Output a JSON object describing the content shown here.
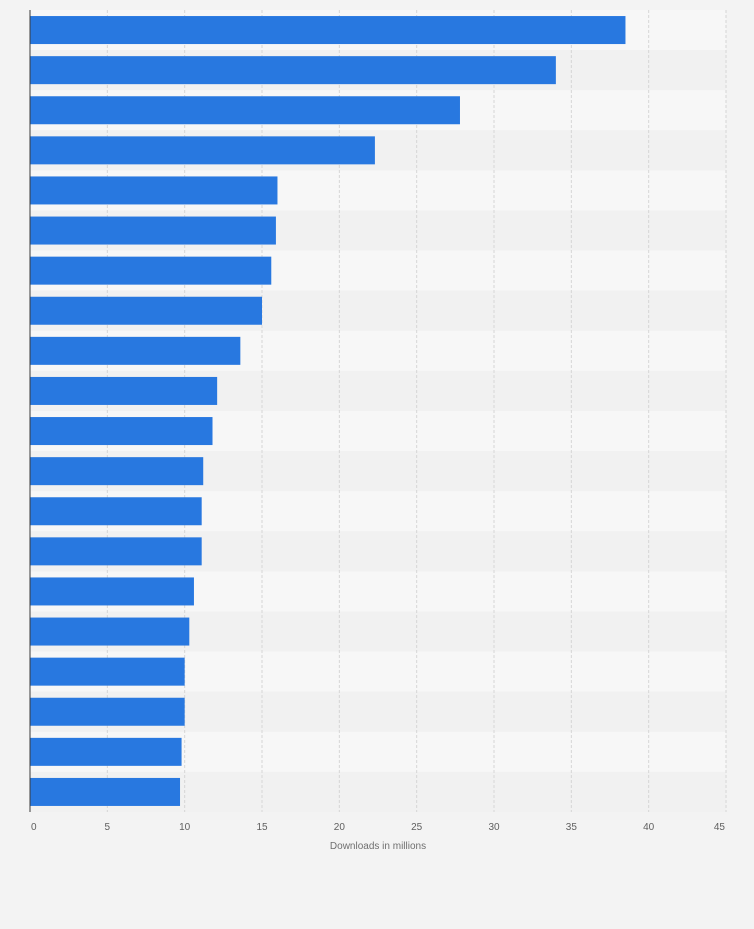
{
  "chart_data": {
    "type": "bar",
    "orientation": "horizontal",
    "title": "",
    "xlabel": "Downloads in millions",
    "ylabel": "",
    "xlim": [
      0,
      45
    ],
    "x_ticks": [
      0,
      5,
      10,
      15,
      20,
      25,
      30,
      35,
      40,
      45
    ],
    "grid": true,
    "categories": [
      "",
      "",
      "",
      "",
      "",
      "",
      "",
      "",
      "",
      "",
      "",
      "",
      "",
      "",
      "",
      "",
      "",
      "",
      "",
      ""
    ],
    "values": [
      38.5,
      34.0,
      27.8,
      22.3,
      16.0,
      15.9,
      15.6,
      15.0,
      13.6,
      12.1,
      11.8,
      11.2,
      11.1,
      11.1,
      10.6,
      10.3,
      10.0,
      10.0,
      9.8,
      9.7
    ],
    "colors": {
      "bar": "#2878e0",
      "band_light": "#f7f7f7",
      "band_dark": "#f1f1f1",
      "background": "#f3f3f3"
    }
  }
}
